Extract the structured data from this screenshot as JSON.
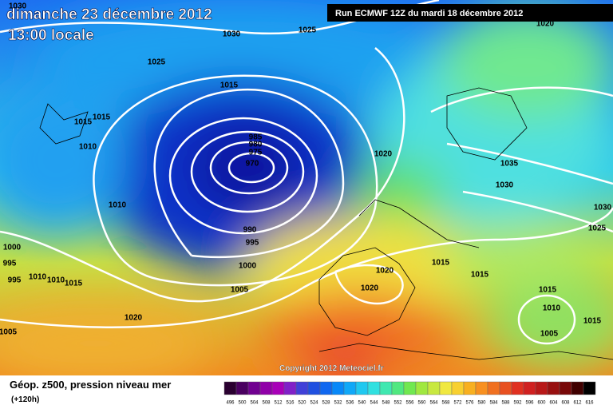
{
  "header": {
    "date": "dimanche 23 décembre 2012",
    "time": "13:00 locale",
    "run": "Run ECMWF 12Z du mardi 18 décembre 2012"
  },
  "isobar_labels": [
    "1030",
    "1030",
    "1025",
    "1020",
    "1025",
    "1015",
    "1015",
    "1015",
    "1010",
    "985",
    "980",
    "975",
    "970",
    "1020",
    "1035",
    "1030",
    "1010",
    "1030",
    "990",
    "995",
    "1025",
    "1000",
    "995",
    "1000",
    "1015",
    "995",
    "1010",
    "1010",
    "1015",
    "1015",
    "1020",
    "1020",
    "1005",
    "1015",
    "1010",
    "1005",
    "1020",
    "1015",
    "1005"
  ],
  "copyright": "Copyright 2012 Meteociel.fr",
  "footer": {
    "title": "Géop. z500, pression niveau mer",
    "lead": "(+120h)"
  },
  "colorbar": {
    "labels": [
      "496",
      "500",
      "504",
      "508",
      "512",
      "516",
      "520",
      "524",
      "528",
      "532",
      "536",
      "540",
      "544",
      "548",
      "552",
      "556",
      "560",
      "564",
      "568",
      "572",
      "576",
      "580",
      "584",
      "588",
      "592",
      "596",
      "600",
      "604",
      "608",
      "612",
      "616"
    ]
  }
}
